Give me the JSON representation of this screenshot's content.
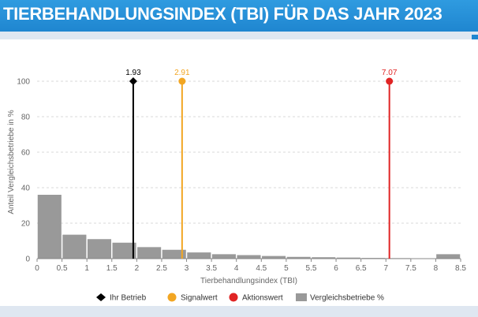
{
  "header": {
    "title": "TIERBEHANDLUNGSINDEX (TBI) FÜR DAS JAHR 2023"
  },
  "colors": {
    "ihr_betrieb": "#000000",
    "signalwert": "#f2a623",
    "aktionswert": "#e02424",
    "bars": "#999999",
    "header": "#1f86d0"
  },
  "chart_data": {
    "type": "bar",
    "title": "",
    "xlabel": "Tierbehandlungsindex (TBI)",
    "ylabel": "Anteil Vergleichsbetriebe in %",
    "xlim": [
      0,
      8.5
    ],
    "ylim": [
      0,
      100
    ],
    "x_ticks": [
      "0",
      "0.5",
      "1",
      "1.5",
      "2",
      "2.5",
      "3",
      "3.5",
      "4",
      "4.5",
      "5",
      "5.5",
      "6",
      "6.5",
      "7",
      "7.5",
      "8",
      "8.5"
    ],
    "y_ticks": [
      "0",
      "20",
      "40",
      "60",
      "80",
      "100"
    ],
    "bins": [
      {
        "from": 0,
        "to": 0.5,
        "value": 36
      },
      {
        "from": 0.5,
        "to": 1,
        "value": 13.5
      },
      {
        "from": 1,
        "to": 1.5,
        "value": 11
      },
      {
        "from": 1.5,
        "to": 2,
        "value": 9
      },
      {
        "from": 2,
        "to": 2.5,
        "value": 6.5
      },
      {
        "from": 2.5,
        "to": 3,
        "value": 5
      },
      {
        "from": 3,
        "to": 3.5,
        "value": 3.5
      },
      {
        "from": 3.5,
        "to": 4,
        "value": 2.5
      },
      {
        "from": 4,
        "to": 4.5,
        "value": 2
      },
      {
        "from": 4.5,
        "to": 5,
        "value": 1.5
      },
      {
        "from": 5,
        "to": 5.5,
        "value": 1
      },
      {
        "from": 5.5,
        "to": 6,
        "value": 0.8
      },
      {
        "from": 6,
        "to": 6.5,
        "value": 0.6
      },
      {
        "from": 6.5,
        "to": 7,
        "value": 0.4
      },
      {
        "from": 7,
        "to": 7.5,
        "value": 0.3
      },
      {
        "from": 7.5,
        "to": 8,
        "value": 0.2
      },
      {
        "from": 8,
        "to": 8.5,
        "value": 2.5
      }
    ],
    "markers": [
      {
        "key": "ihr_betrieb",
        "name": "Ihr Betrieb",
        "x": 1.93,
        "label": "1.93",
        "shape": "diamond"
      },
      {
        "key": "signalwert",
        "name": "Signalwert",
        "x": 2.91,
        "label": "2.91",
        "shape": "circle"
      },
      {
        "key": "aktionswert",
        "name": "Aktionswert",
        "x": 7.07,
        "label": "7.07",
        "shape": "circle"
      }
    ],
    "legend": {
      "position": "bottom",
      "items": [
        "Ihr Betrieb",
        "Signalwert",
        "Aktionswert",
        "Vergleichsbetriebe %"
      ]
    },
    "grid": "horizontal"
  }
}
